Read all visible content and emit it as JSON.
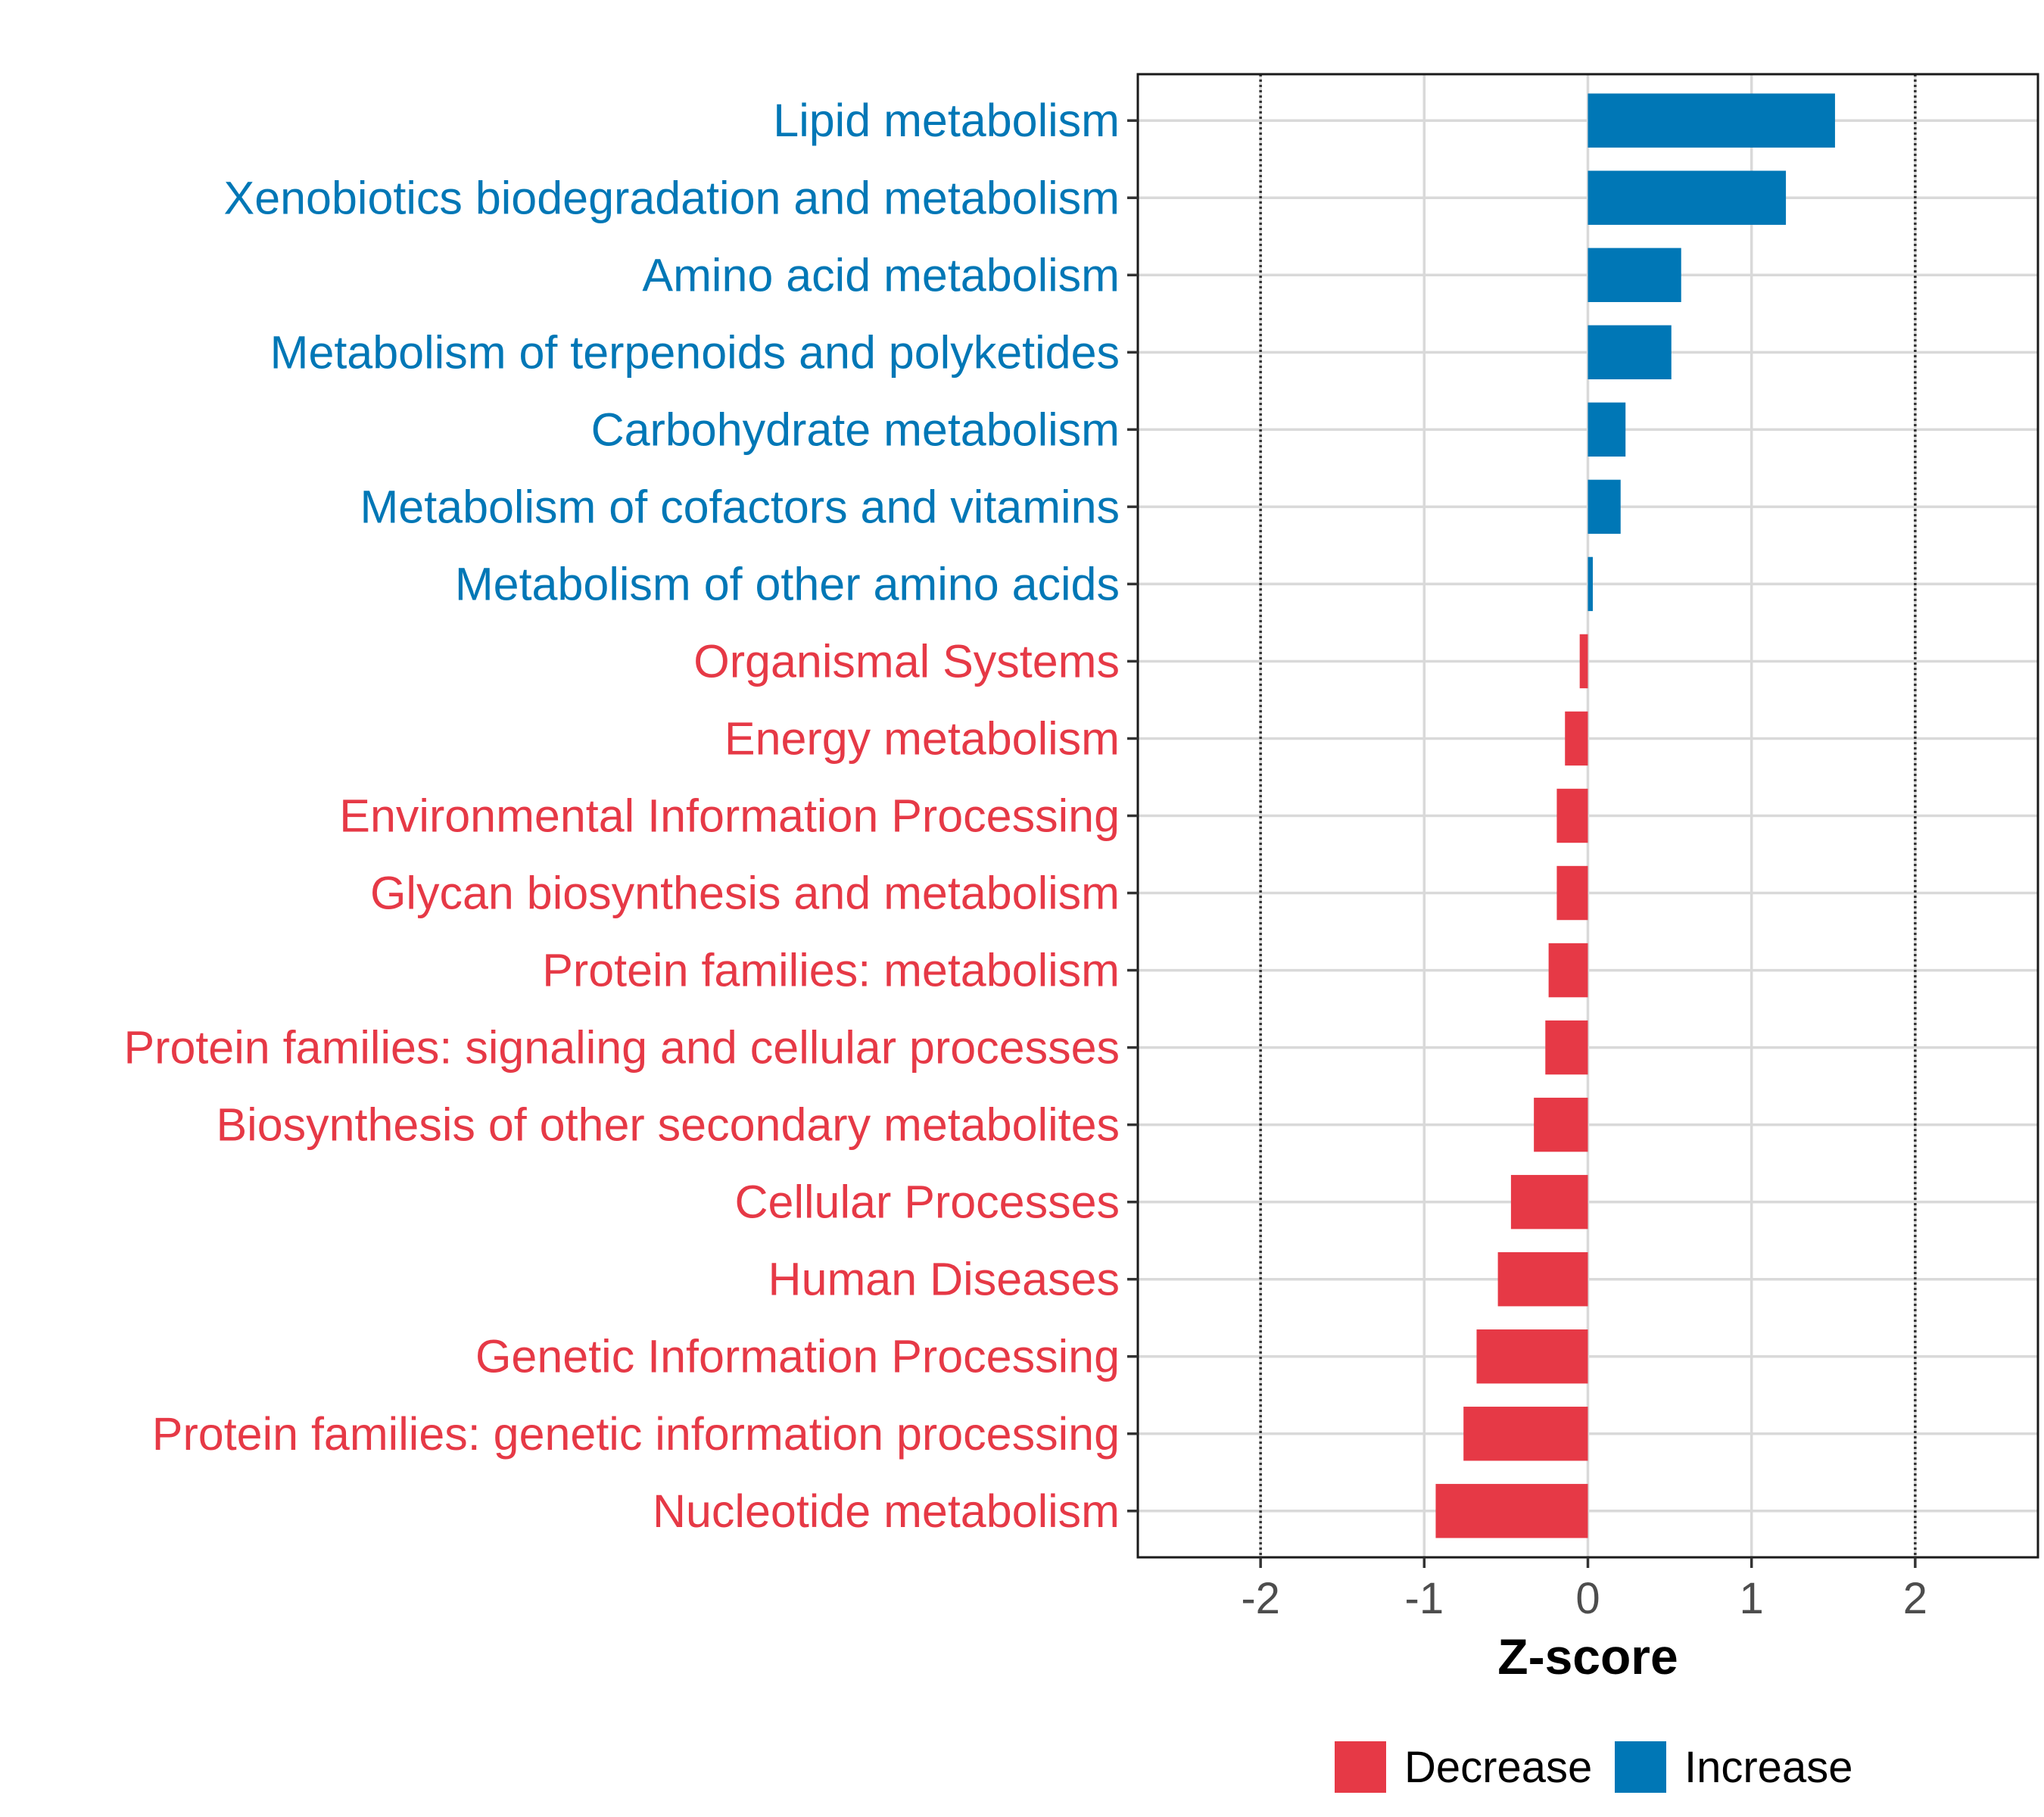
{
  "chart_data": {
    "type": "bar",
    "orientation": "horizontal",
    "xlabel": "Z-score",
    "xlim": [
      -2.75,
      2.75
    ],
    "xticks": [
      -2,
      -1,
      0,
      1,
      2
    ],
    "xtick_labels": [
      "-2",
      "-1",
      "0",
      "1",
      "2"
    ],
    "reference_lines": [
      -2,
      2
    ],
    "grid": true,
    "legend_position": "bottom",
    "categories": [
      "Lipid metabolism",
      "Xenobiotics biodegradation and metabolism",
      "Amino acid metabolism",
      "Metabolism of terpenoids and polyketides",
      "Carbohydrate metabolism",
      "Metabolism of cofactors and vitamins",
      "Metabolism of other amino acids",
      "Organismal Systems",
      "Energy metabolism",
      "Environmental Information Processing",
      "Glycan biosynthesis and metabolism",
      "Protein families: metabolism",
      "Protein families: signaling and cellular processes",
      "Biosynthesis of other secondary metabolites",
      "Cellular Processes",
      "Human Diseases",
      "Genetic Information Processing",
      "Protein families: genetic information processing",
      "Nucleotide metabolism"
    ],
    "values": [
      1.51,
      1.21,
      0.57,
      0.51,
      0.23,
      0.2,
      0.03,
      -0.05,
      -0.14,
      -0.19,
      -0.19,
      -0.24,
      -0.26,
      -0.33,
      -0.47,
      -0.55,
      -0.68,
      -0.76,
      -0.93
    ],
    "groups": [
      "Increase",
      "Increase",
      "Increase",
      "Increase",
      "Increase",
      "Increase",
      "Increase",
      "Decrease",
      "Decrease",
      "Decrease",
      "Decrease",
      "Decrease",
      "Decrease",
      "Decrease",
      "Decrease",
      "Decrease",
      "Decrease",
      "Decrease",
      "Decrease"
    ],
    "legend": [
      {
        "name": "Decrease",
        "color": "#e63946"
      },
      {
        "name": "Increase",
        "color": "#0077b6"
      }
    ]
  }
}
